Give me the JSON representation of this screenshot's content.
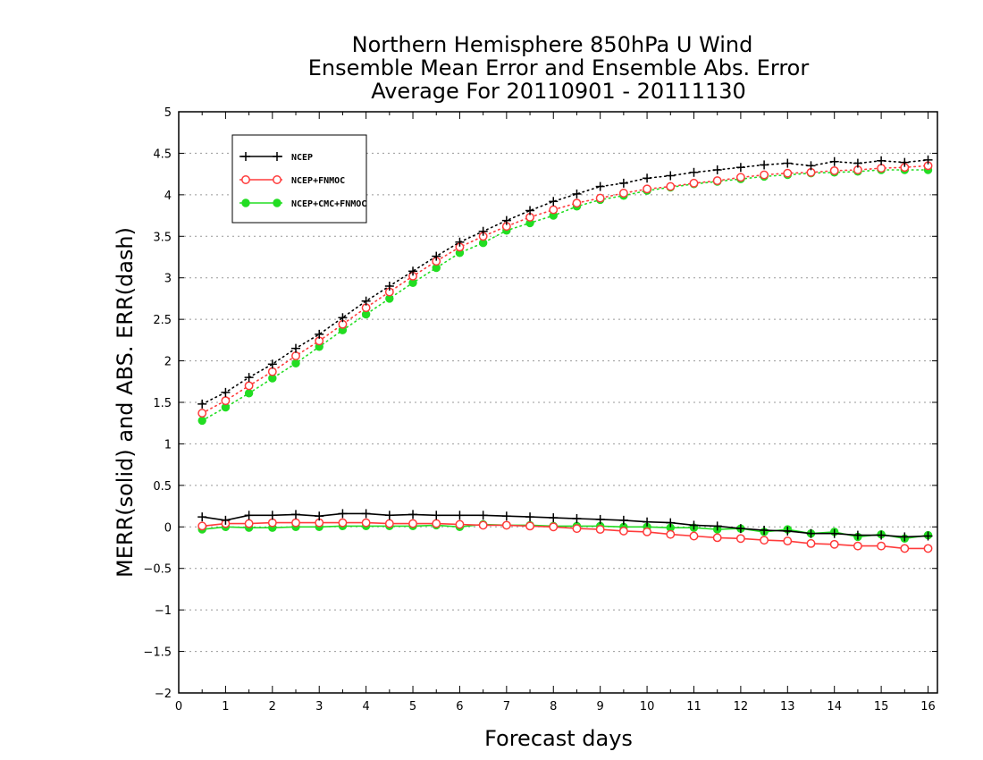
{
  "chart_data": {
    "type": "line",
    "title": [
      "Northern Hemisphere 850hPa U Wind",
      "Ensemble Mean Error and Ensemble Abs. Error",
      "Average For 20110901 - 20111130"
    ],
    "xlabel": "Forecast days",
    "ylabel": "MERR(solid) and ABS. ERR(dash)",
    "xlim": [
      0,
      16.2
    ],
    "ylim": [
      -2,
      5
    ],
    "xticks": [
      "0",
      "1",
      "2",
      "3",
      "4",
      "5",
      "6",
      "7",
      "8",
      "9",
      "10",
      "11",
      "12",
      "13",
      "14",
      "15",
      "16"
    ],
    "yticks": [
      "−2",
      "−1.5",
      "−1",
      "−0.5",
      "0",
      "0.5",
      "1",
      "1.5",
      "2",
      "2.5",
      "3",
      "3.5",
      "4",
      "4.5",
      "5"
    ],
    "grid": "dotted horizontal lines at each y tick",
    "legend_placement": "top-left",
    "x": [
      0.5,
      1,
      1.5,
      2,
      2.5,
      3,
      3.5,
      4,
      4.5,
      5,
      5.5,
      6,
      6.5,
      7,
      7.5,
      8,
      8.5,
      9,
      9.5,
      10,
      10.5,
      11,
      11.5,
      12,
      12.5,
      13,
      13.5,
      14,
      14.5,
      15,
      15.5,
      16
    ],
    "series": [
      {
        "name": "NCEP",
        "color": "#000000",
        "marker": "plus",
        "abs_err": [
          1.48,
          1.62,
          1.8,
          1.96,
          2.15,
          2.32,
          2.52,
          2.72,
          2.9,
          3.08,
          3.26,
          3.43,
          3.56,
          3.69,
          3.81,
          3.92,
          4.01,
          4.1,
          4.14,
          4.2,
          4.23,
          4.27,
          4.3,
          4.33,
          4.36,
          4.38,
          4.35,
          4.4,
          4.38,
          4.41,
          4.39,
          4.42
        ],
        "mean_err": [
          0.12,
          0.08,
          0.14,
          0.14,
          0.15,
          0.13,
          0.16,
          0.16,
          0.14,
          0.15,
          0.14,
          0.14,
          0.14,
          0.13,
          0.12,
          0.11,
          0.1,
          0.09,
          0.08,
          0.06,
          0.05,
          0.02,
          0.01,
          -0.02,
          -0.04,
          -0.05,
          -0.08,
          -0.08,
          -0.1,
          -0.1,
          -0.12,
          -0.11
        ]
      },
      {
        "name": "NCEP+FNMOC",
        "color": "#ff3b3b",
        "marker": "open-circle",
        "abs_err": [
          1.37,
          1.52,
          1.7,
          1.87,
          2.06,
          2.24,
          2.44,
          2.64,
          2.83,
          3.02,
          3.2,
          3.37,
          3.5,
          3.62,
          3.73,
          3.82,
          3.9,
          3.96,
          4.02,
          4.07,
          4.1,
          4.14,
          4.17,
          4.21,
          4.24,
          4.26,
          4.27,
          4.29,
          4.3,
          4.32,
          4.33,
          4.35
        ],
        "mean_err": [
          0.01,
          0.04,
          0.04,
          0.05,
          0.05,
          0.05,
          0.05,
          0.05,
          0.04,
          0.04,
          0.04,
          0.03,
          0.02,
          0.02,
          0.01,
          0.0,
          -0.02,
          -0.03,
          -0.05,
          -0.06,
          -0.09,
          -0.11,
          -0.13,
          -0.14,
          -0.16,
          -0.17,
          -0.2,
          -0.21,
          -0.23,
          -0.23,
          -0.26,
          -0.26
        ]
      },
      {
        "name": "NCEP+CMC+FNMOC",
        "color": "#22dd22",
        "marker": "filled-circle",
        "abs_err": [
          1.28,
          1.44,
          1.61,
          1.79,
          1.97,
          2.17,
          2.37,
          2.56,
          2.75,
          2.94,
          3.12,
          3.3,
          3.42,
          3.57,
          3.66,
          3.75,
          3.86,
          3.94,
          3.99,
          4.05,
          4.09,
          4.13,
          4.16,
          4.19,
          4.22,
          4.24,
          4.26,
          4.27,
          4.28,
          4.3,
          4.3,
          4.3
        ],
        "mean_err": [
          -0.03,
          0.0,
          -0.01,
          -0.01,
          0.0,
          0.0,
          0.01,
          0.01,
          0.01,
          0.01,
          0.02,
          0.0,
          0.03,
          0.02,
          0.02,
          0.01,
          0.01,
          0.01,
          0.0,
          0.0,
          -0.01,
          -0.01,
          -0.03,
          -0.02,
          -0.06,
          -0.03,
          -0.08,
          -0.06,
          -0.12,
          -0.09,
          -0.14,
          -0.1
        ]
      }
    ]
  }
}
